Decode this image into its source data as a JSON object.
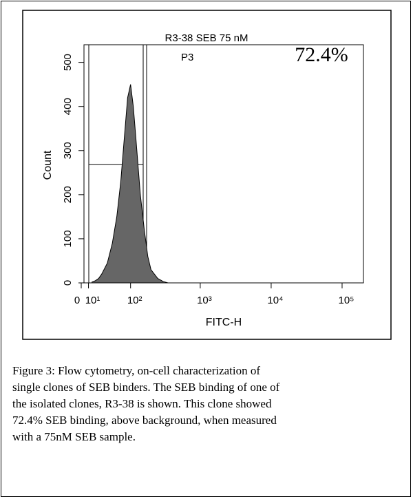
{
  "chart_data": {
    "type": "area",
    "title": "R3-38 SEB 75 nM",
    "x_label": "FITC-H",
    "y_label": "Count",
    "gate_label": "P3",
    "annotation": "72.4%",
    "x": [
      15,
      20,
      25,
      30,
      40,
      50,
      60,
      70,
      80,
      90,
      100,
      110,
      120,
      140,
      160,
      180,
      200,
      250,
      300,
      350
    ],
    "values": [
      2,
      5,
      10,
      20,
      45,
      90,
      150,
      230,
      330,
      420,
      450,
      400,
      330,
      200,
      120,
      60,
      30,
      10,
      3,
      0
    ],
    "color": "#666666",
    "xlim": [
      0,
      200000
    ],
    "ylim": [
      0,
      540
    ],
    "xticks": [
      0,
      {
        "value": 10,
        "label": "10¹"
      },
      {
        "value": 100,
        "label": "10²"
      },
      {
        "value": 1000,
        "label": "10³"
      },
      {
        "value": 10000,
        "label": "10⁴"
      },
      {
        "value": 100000,
        "label": "10⁵"
      }
    ],
    "yticks": [
      0,
      100,
      200,
      300,
      400,
      500
    ]
  },
  "caption": [
    "Figure 3:  Flow cytometry, on-cell characterization of",
    "single clones of SEB binders.  The SEB binding of one of",
    "the isolated clones, R3-38 is shown.  This clone showed",
    "72.4% SEB binding, above background, when measured",
    "with a 75nM SEB sample."
  ]
}
